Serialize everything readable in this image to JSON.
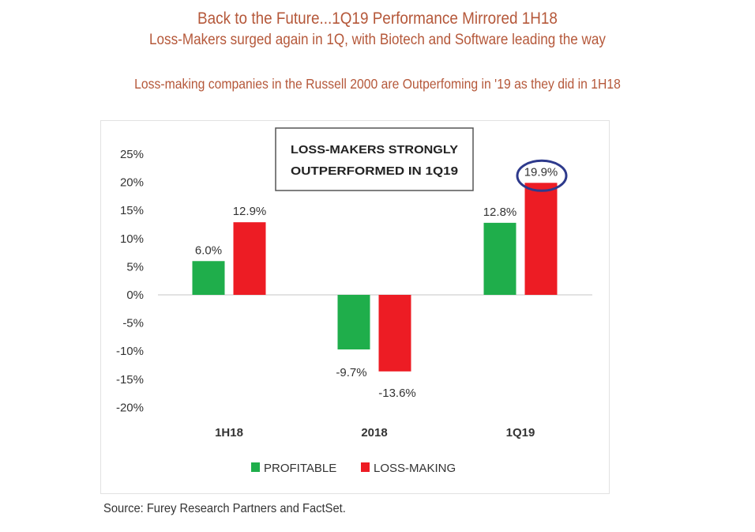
{
  "header": {
    "title": "Back to the Future...1Q19 Performance Mirrored 1H18",
    "subtitle": "Loss-Makers surged again in 1Q, with Biotech and Software leading the way",
    "caption": "Loss-making companies in the Russell 2000 are Outperfoming in '19 as they did in 1H18"
  },
  "source": "Source: Furey Research Partners and FactSet.",
  "chart_data": {
    "type": "bar",
    "title": "",
    "xlabel": "",
    "ylabel": "",
    "categories": [
      "1H18",
      "2018",
      "1Q19"
    ],
    "series": [
      {
        "name": "PROFITABLE",
        "color": "#1fae4b",
        "values": [
          6.0,
          -9.7,
          12.8
        ],
        "labels": [
          "6.0%",
          "-9.7%",
          "12.8%"
        ]
      },
      {
        "name": "LOSS-MAKING",
        "color": "#ed1c24",
        "values": [
          12.9,
          -13.6,
          19.9
        ],
        "labels": [
          "12.9%",
          "-13.6%",
          "19.9%"
        ]
      }
    ],
    "ylim": [
      -20,
      25
    ],
    "yticks": [
      25,
      20,
      15,
      10,
      5,
      0,
      -5,
      -10,
      -15,
      -20
    ],
    "ytick_labels": [
      "25%",
      "20%",
      "15%",
      "10%",
      "5%",
      "0%",
      "-5%",
      "-10%",
      "-15%",
      "-20%"
    ],
    "grid": false,
    "legend": "bottom-center",
    "annotation": {
      "lines": [
        "LOSS-MAKERS STRONGLY",
        "OUTPERFORMED IN 1Q19"
      ]
    },
    "highlight": {
      "series": "LOSS-MAKING",
      "category": "1Q19",
      "shape": "ellipse",
      "color": "#2e3a8c"
    }
  }
}
